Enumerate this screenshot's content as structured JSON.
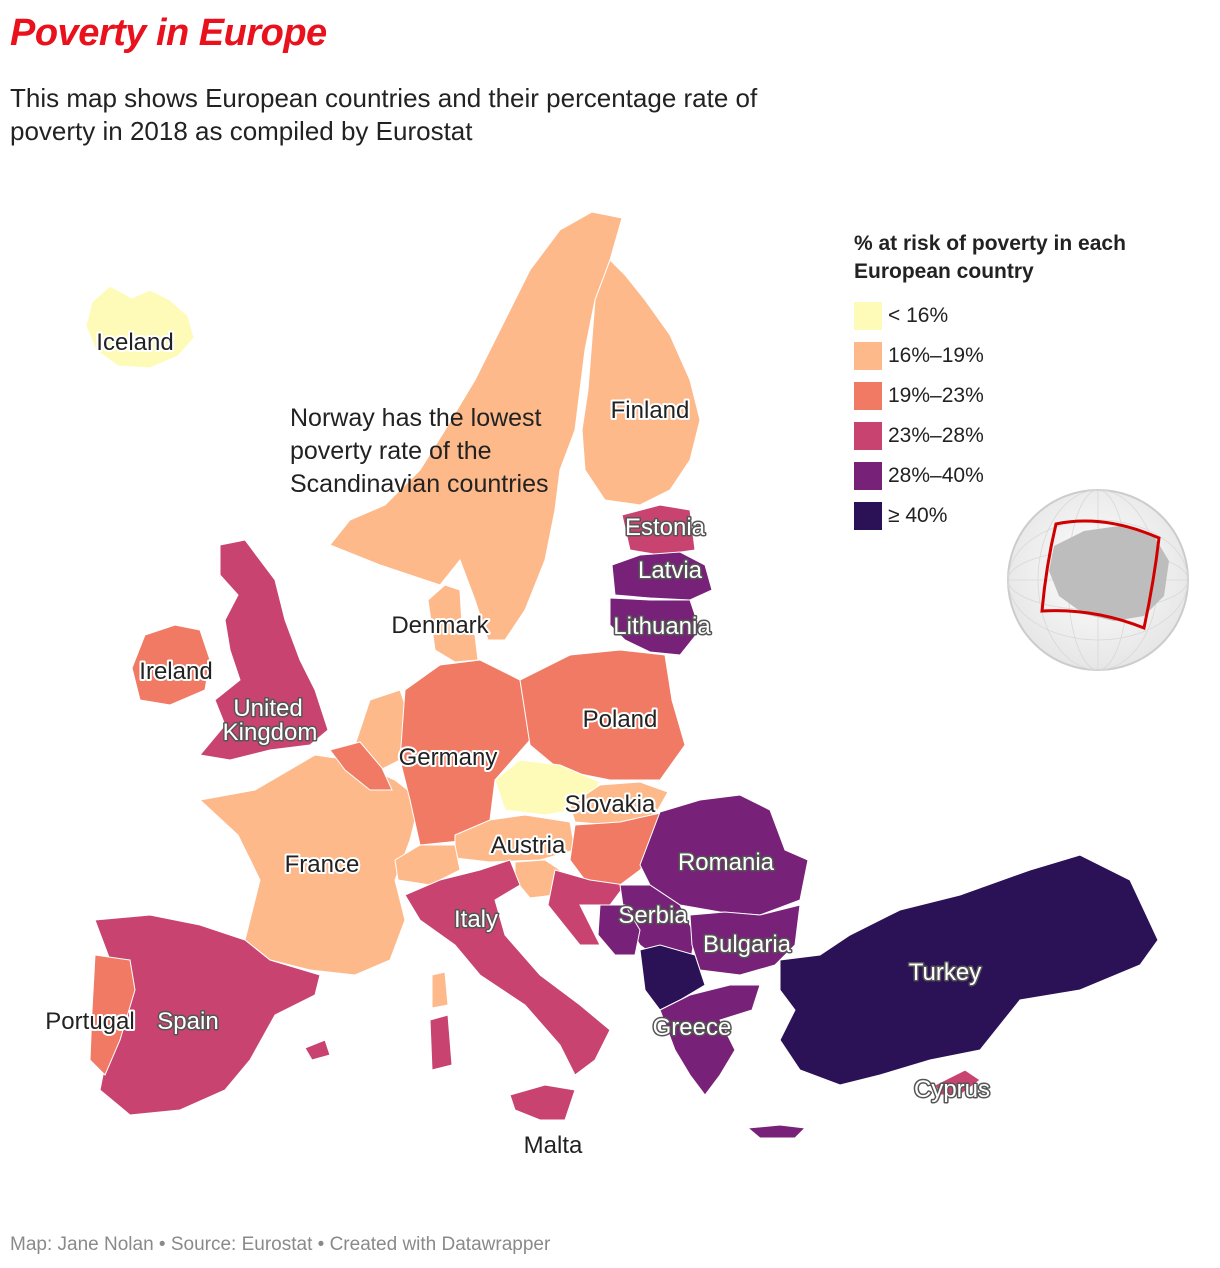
{
  "title": "Poverty in Europe",
  "subtitle": "This map shows European countries and their percentage rate of poverty in 2018 as compiled by Eurostat",
  "legend": {
    "title": "% at risk of poverty in each European country",
    "items": [
      {
        "label": "< 16%",
        "color": "#fefbb9"
      },
      {
        "label": "16%–19%",
        "color": "#fdb98a"
      },
      {
        "label": "19%–23%",
        "color": "#f07a64"
      },
      {
        "label": "23%–28%",
        "color": "#c8436f"
      },
      {
        "label": "28%–40%",
        "color": "#782178"
      },
      {
        "label": "≥ 40%",
        "color": "#2b1257"
      }
    ]
  },
  "annotation": "Norway has the lowest poverty rate of the Scandinavian countries",
  "countries": {
    "iceland": "Iceland",
    "finland": "Finland",
    "estonia": "Estonia",
    "latvia": "Latvia",
    "lithuania": "Lithuania",
    "denmark": "Denmark",
    "ireland": "Ireland",
    "uk": "United Kingdom",
    "poland": "Poland",
    "germany": "Germany",
    "slovakia": "Slovakia",
    "austria": "Austria",
    "france": "France",
    "romania": "Romania",
    "italy": "Italy",
    "serbia": "Serbia",
    "bulgaria": "Bulgaria",
    "turkey": "Turkey",
    "portugal": "Portugal",
    "spain": "Spain",
    "greece": "Greece",
    "cyprus": "Cyprus",
    "malta": "Malta"
  },
  "footer": "Map: Jane Nolan • Source: Eurostat • Created with Datawrapper"
}
